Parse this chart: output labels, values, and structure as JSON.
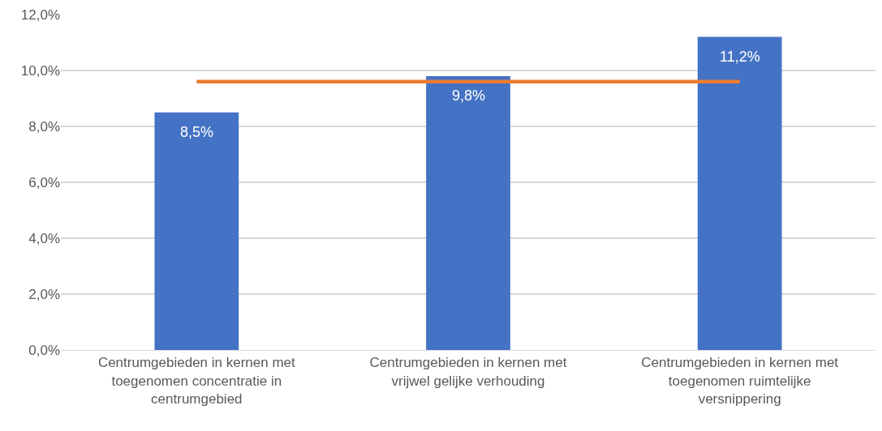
{
  "chart_data": {
    "type": "bar",
    "categories": [
      "Centrumgebieden in kernen met toegenomen concentratie in centrumgebied",
      "Centrumgebieden in kernen met vrijwel gelijke verhouding",
      "Centrumgebieden in kernen met toegenomen ruimtelijke versnippering"
    ],
    "series": [
      {
        "color": "#4472c4",
        "values": [
          8.5,
          9.8,
          11.2
        ],
        "value_labels": [
          "8,5%",
          "9,8%",
          "11,2%"
        ]
      },
      {
        "type": "line",
        "color": "#ed7d31",
        "values": [
          9.6,
          9.6,
          9.6
        ]
      }
    ],
    "ylim": [
      0,
      12
    ],
    "yticks": [
      {
        "value": 0,
        "label": "0,0%"
      },
      {
        "value": 2,
        "label": "2,0%"
      },
      {
        "value": 4,
        "label": "4,0%"
      },
      {
        "value": 6,
        "label": "6,0%"
      },
      {
        "value": 8,
        "label": "8,0%"
      },
      {
        "value": 10,
        "label": "10,0%"
      },
      {
        "value": 12,
        "label": "12,0%"
      }
    ],
    "grid": "y",
    "legend": false,
    "marker": "none"
  }
}
